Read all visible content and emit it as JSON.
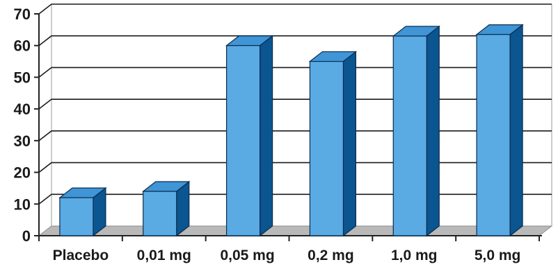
{
  "chart_data": {
    "type": "bar",
    "style": "3d",
    "categories": [
      "Placebo",
      "0,01 mg",
      "0,05 mg",
      "0,2 mg",
      "1,0 mg",
      "5,0 mg"
    ],
    "values": [
      12,
      14,
      60,
      55,
      63,
      63.5
    ],
    "ylim": [
      0,
      70
    ],
    "yticks": [
      "0",
      "10",
      "20",
      "30",
      "40",
      "50",
      "60",
      "70"
    ],
    "grid": true,
    "title": "",
    "xlabel": "",
    "ylabel": "",
    "colors": {
      "bar_front": "#5aaae3",
      "bar_top": "#3f95d6",
      "bar_side": "#0b5590",
      "bar_outline": "#0a2c4f",
      "floor": "#b9b9b9",
      "grid": "#1a1a1a",
      "back_wall": "#ffffff"
    }
  }
}
